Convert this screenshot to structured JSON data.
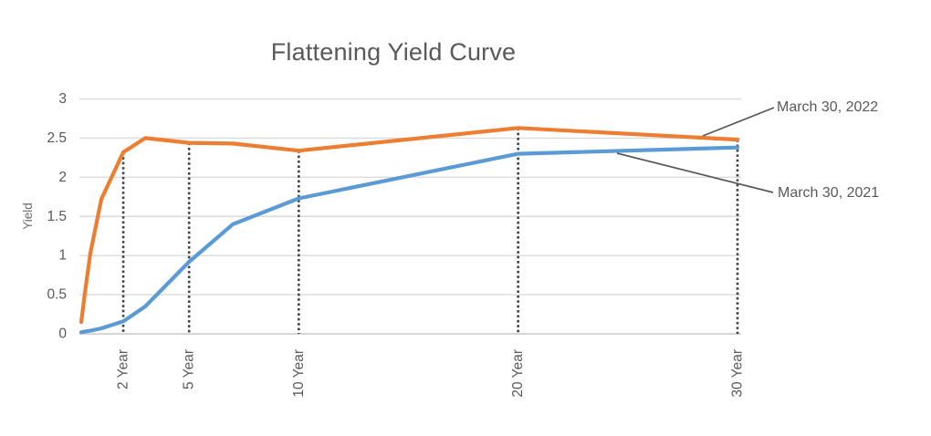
{
  "chart_data": {
    "type": "line",
    "title": "Flattening Yield Curve",
    "xlabel": "",
    "ylabel": "Yield",
    "ylim": [
      0,
      3
    ],
    "xlim": [
      0,
      30
    ],
    "x_unit": "years to maturity (linear scale)",
    "grid": "horizontal light-gray gridlines on",
    "legend_position": "right-side leader-line labels (no legend box)",
    "yticks": [
      {
        "value": 0,
        "label": "0"
      },
      {
        "value": 0.5,
        "label": "0.5"
      },
      {
        "value": 1,
        "label": "1"
      },
      {
        "value": 1.5,
        "label": "1.5"
      },
      {
        "value": 2,
        "label": "2"
      },
      {
        "value": 2.5,
        "label": "2.5"
      },
      {
        "value": 3,
        "label": "3"
      }
    ],
    "category_ticks": [
      {
        "label": "2 Year",
        "years": 2
      },
      {
        "label": "5 Year",
        "years": 5
      },
      {
        "label": "10 Year",
        "years": 10
      },
      {
        "label": "20 Year",
        "years": 20
      },
      {
        "label": "30 Year",
        "years": 30
      }
    ],
    "guide_lines": "dark dotted vertical lines at each labeled maturity, from x-axis up to the orange series",
    "series": [
      {
        "name": "March 30, 2022",
        "color": "#ED7D31",
        "points": [
          [
            0.083,
            0.15
          ],
          [
            0.25,
            0.52
          ],
          [
            0.5,
            1.03
          ],
          [
            1,
            1.72
          ],
          [
            2,
            2.32
          ],
          [
            3,
            2.5
          ],
          [
            5,
            2.44
          ],
          [
            7,
            2.43
          ],
          [
            10,
            2.34
          ],
          [
            20,
            2.63
          ],
          [
            30,
            2.48
          ]
        ]
      },
      {
        "name": "March 30, 2021",
        "color": "#5B9BD5",
        "points": [
          [
            0.083,
            0.02
          ],
          [
            0.25,
            0.03
          ],
          [
            0.5,
            0.04
          ],
          [
            1,
            0.07
          ],
          [
            2,
            0.16
          ],
          [
            3,
            0.35
          ],
          [
            5,
            0.92
          ],
          [
            7,
            1.4
          ],
          [
            10,
            1.73
          ],
          [
            20,
            2.3
          ],
          [
            30,
            2.38
          ]
        ]
      }
    ],
    "annotations": [
      {
        "text": "March 30, 2022",
        "attached_to": "orange series, near right end"
      },
      {
        "text": "March 30, 2021",
        "attached_to": "blue series, near right end"
      }
    ]
  },
  "colors": {
    "series_2022": "#ED7D31",
    "series_2021": "#5B9BD5",
    "gridline": "#DBDBDB",
    "baseline": "#C9C9C9",
    "guide_dotted": "#404040",
    "axis_text": "#595959",
    "leader_line": "#595959",
    "background": "#FFFFFF"
  }
}
